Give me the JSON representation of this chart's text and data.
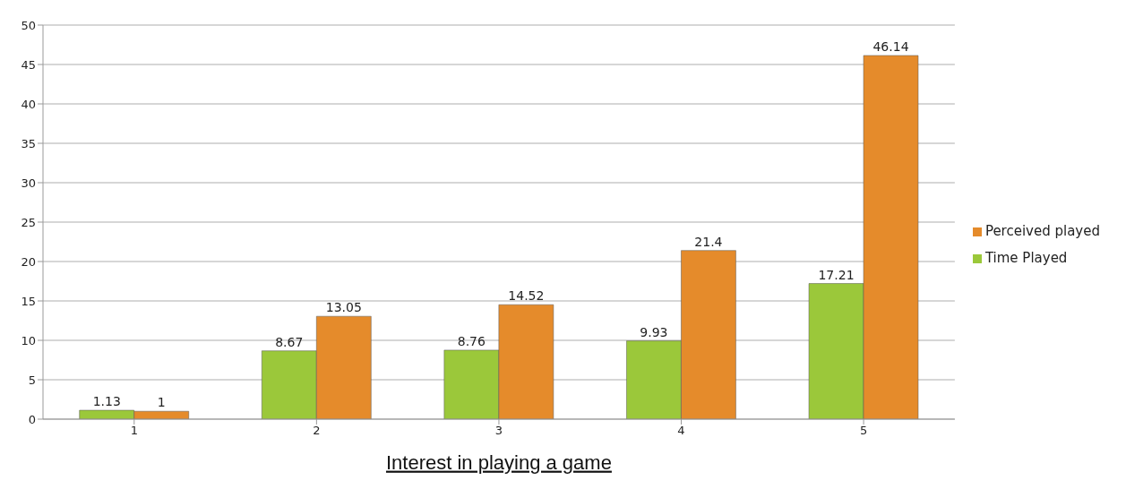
{
  "chart_data": {
    "type": "bar",
    "xlabel": "Interest in playing a game",
    "categories": [
      "1",
      "2",
      "3",
      "4",
      "5"
    ],
    "series": [
      {
        "name": "Time Played",
        "color": "#9bc83a",
        "values": [
          1.13,
          8.67,
          8.76,
          9.93,
          17.21
        ]
      },
      {
        "name": "Perceived played",
        "color": "#e58b2b",
        "values": [
          1,
          13.05,
          14.52,
          21.4,
          46.14
        ]
      }
    ],
    "ylim": [
      0,
      50
    ],
    "yticks": [
      0,
      5,
      10,
      15,
      20,
      25,
      30,
      35,
      40,
      45,
      50
    ],
    "grid": "y",
    "legend": "right",
    "data_labels": true
  }
}
